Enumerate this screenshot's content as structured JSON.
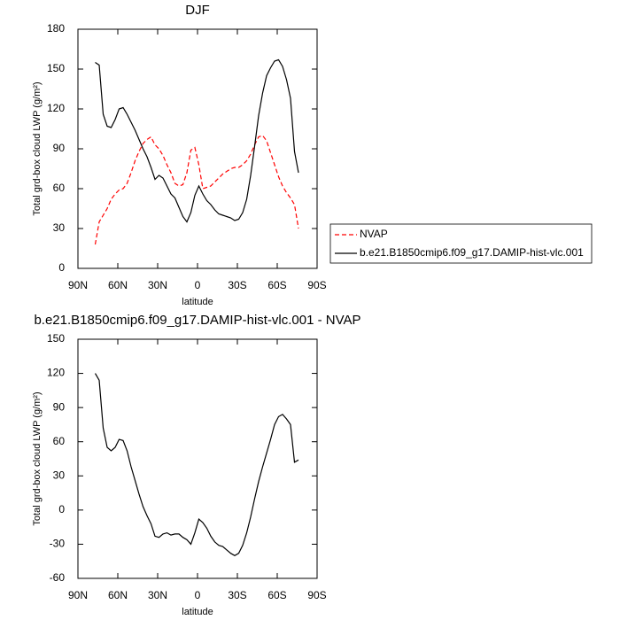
{
  "chart_data": [
    {
      "type": "line",
      "title": "DJF",
      "xlabel": "latitude",
      "ylabel": "Total grd-box cloud LWP (g/m²)",
      "x": [
        77,
        74,
        71,
        68,
        65,
        62,
        59,
        56,
        53,
        50,
        47,
        44,
        41,
        38,
        35,
        32,
        29,
        26,
        23,
        20,
        17,
        14,
        11,
        8,
        5,
        2,
        -1,
        -4,
        -7,
        -10,
        -13,
        -16,
        -19,
        -22,
        -25,
        -28,
        -31,
        -34,
        -37,
        -40,
        -43,
        -46,
        -49,
        -52,
        -55,
        -58,
        -61,
        -64,
        -67,
        -70,
        -73,
        -76
      ],
      "series": [
        {
          "name": "NVAP",
          "color": "#ff0000",
          "dashed": true,
          "values": [
            18,
            35,
            40,
            45,
            52,
            56,
            59,
            60,
            64,
            72,
            81,
            88,
            94,
            97,
            99,
            93,
            90,
            85,
            78,
            72,
            64,
            62,
            63,
            72,
            89,
            91,
            78,
            60,
            61,
            62,
            65,
            68,
            71,
            73,
            75,
            76,
            76,
            78,
            81,
            86,
            93,
            99,
            100,
            96,
            87,
            78,
            69,
            62,
            57,
            53,
            48,
            30
          ]
        },
        {
          "name": "b.e21.B1850cmip6.f09_g17.DAMIP-hist-vlc.001",
          "color": "#000000",
          "dashed": false,
          "values": [
            155,
            153,
            116,
            107,
            106,
            112,
            120,
            121,
            116,
            110,
            104,
            97,
            90,
            84,
            76,
            67,
            70,
            68,
            62,
            56,
            53,
            46,
            39,
            35,
            42,
            55,
            62,
            56,
            51,
            48,
            44,
            41,
            40,
            39,
            38,
            36,
            37,
            42,
            52,
            70,
            92,
            115,
            132,
            145,
            151,
            156,
            157,
            152,
            142,
            128,
            88,
            72
          ]
        }
      ],
      "xlim": [
        90,
        -90
      ],
      "xticks": [
        {
          "value": 90,
          "label": "90N"
        },
        {
          "value": 60,
          "label": "60N"
        },
        {
          "value": 30,
          "label": "30N"
        },
        0,
        {
          "value": -30,
          "label": "30S"
        },
        {
          "value": -60,
          "label": "60S"
        },
        {
          "value": -90,
          "label": "90S"
        }
      ],
      "ylim": [
        0,
        180
      ],
      "yticks": [
        0,
        30,
        60,
        90,
        120,
        150,
        180
      ],
      "legend": "right"
    },
    {
      "type": "line",
      "title": "b.e21.B1850cmip6.f09_g17.DAMIP-hist-vlc.001 - NVAP",
      "xlabel": "latitude",
      "ylabel": "Total grd-box cloud LWP (g/m²)",
      "x": [
        77,
        74,
        71,
        68,
        65,
        62,
        59,
        56,
        53,
        50,
        47,
        44,
        41,
        38,
        35,
        32,
        29,
        26,
        23,
        20,
        17,
        14,
        11,
        8,
        5,
        2,
        -1,
        -4,
        -7,
        -10,
        -13,
        -16,
        -19,
        -22,
        -25,
        -28,
        -31,
        -34,
        -37,
        -40,
        -43,
        -46,
        -49,
        -52,
        -55,
        -58,
        -61,
        -64,
        -67,
        -70,
        -73,
        -76
      ],
      "series": [
        {
          "color": "#000000",
          "dashed": false,
          "values": [
            120,
            114,
            72,
            55,
            52,
            55,
            62,
            61,
            52,
            38,
            26,
            14,
            3,
            -5,
            -12,
            -23,
            -24,
            -21,
            -20,
            -22,
            -21,
            -21,
            -24,
            -26,
            -30,
            -20,
            -8,
            -11,
            -16,
            -23,
            -28,
            -31,
            -32,
            -35,
            -38,
            -40,
            -38,
            -31,
            -20,
            -6,
            10,
            25,
            38,
            50,
            62,
            75,
            82,
            84,
            80,
            75,
            42,
            44
          ]
        }
      ],
      "xlim": [
        90,
        -90
      ],
      "xticks": [
        {
          "value": 90,
          "label": "90N"
        },
        {
          "value": 60,
          "label": "60N"
        },
        {
          "value": 30,
          "label": "30N"
        },
        0,
        {
          "value": -30,
          "label": "30S"
        },
        {
          "value": -60,
          "label": "60S"
        },
        {
          "value": -90,
          "label": "90S"
        }
      ],
      "ylim": [
        -60,
        150
      ],
      "yticks": [
        -60,
        -30,
        0,
        30,
        60,
        90,
        120,
        150
      ]
    }
  ]
}
